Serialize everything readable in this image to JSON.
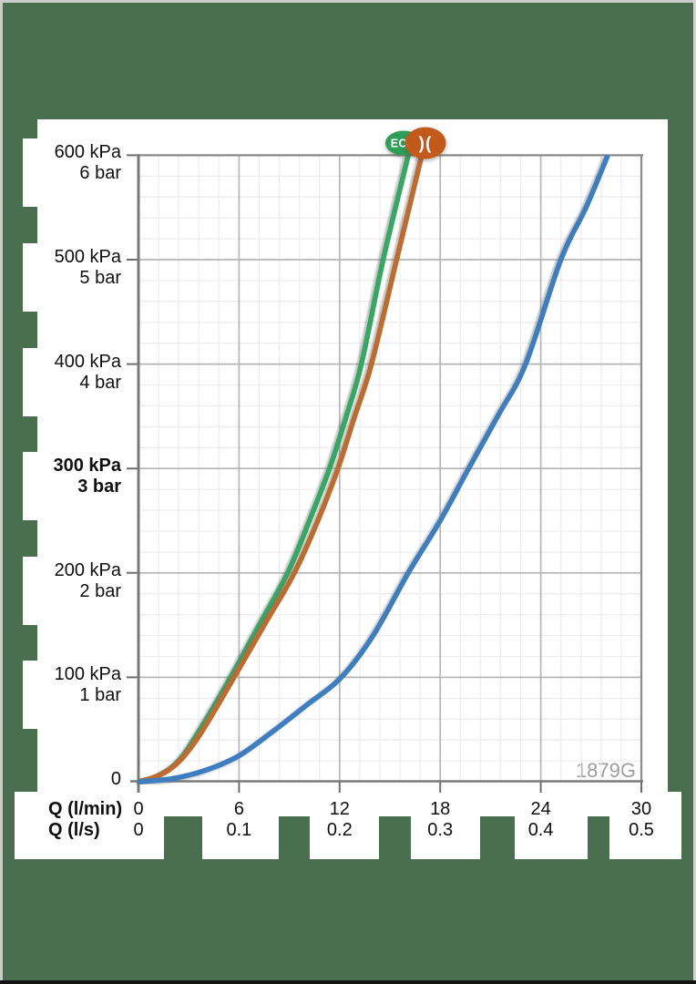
{
  "window": {
    "background_color": "#4a6f4f",
    "panel_color": "#ffffff"
  },
  "chart_data": {
    "type": "line",
    "title": "",
    "watermark": "1879G",
    "x_axis": {
      "label_lmin": "Q (l/min)",
      "label_ls": "Q (l/s)",
      "ticks_lmin": [
        "0",
        "6",
        "12",
        "18",
        "24",
        "30"
      ],
      "ticks_ls": [
        "0",
        "0.1",
        "0.2",
        "0.3",
        "0.4",
        "0.5"
      ],
      "range_lmin": [
        0,
        30
      ],
      "major_step_lmin": 6,
      "minor_step_lmin": 1.2
    },
    "y_axis": {
      "ticks": [
        {
          "kpa": "600 kPa",
          "bar": "6 bar",
          "value": 600,
          "bold": false
        },
        {
          "kpa": "500 kPa",
          "bar": "5 bar",
          "value": 500,
          "bold": false
        },
        {
          "kpa": "400 kPa",
          "bar": "4 bar",
          "value": 400,
          "bold": false
        },
        {
          "kpa": "300 kPa",
          "bar": "3 bar",
          "value": 300,
          "bold": true
        },
        {
          "kpa": "200 kPa",
          "bar": "2 bar",
          "value": 200,
          "bold": false
        },
        {
          "kpa": "100 kPa",
          "bar": "1 bar",
          "value": 100,
          "bold": false
        }
      ],
      "zero_label": "0",
      "range_kpa": [
        0,
        600
      ],
      "major_step_kpa": 100,
      "minor_step_kpa": 20
    },
    "grid": {
      "minor_color": "#ededef",
      "major_color": "#b5b5b7",
      "border_color": "#8a8a8a",
      "axis_color": "#787878",
      "tick_color": "#6e6e6e"
    },
    "legend_badges": [
      {
        "name": "eco",
        "label": "ECO",
        "bg": "#2f9e57",
        "text_color": "#ffffff"
      },
      {
        "name": "flow-restrictor",
        "label": ")(",
        "bg": "#c35a1c",
        "text_color": "#ffffff"
      }
    ],
    "series": [
      {
        "name": "eco-flow",
        "color": "#35a864",
        "points_lmin_kpa": [
          [
            0,
            0
          ],
          [
            1.2,
            6
          ],
          [
            2.4,
            20
          ],
          [
            3.6,
            48
          ],
          [
            5.5,
            100
          ],
          [
            7.2,
            150
          ],
          [
            8.9,
            200
          ],
          [
            10.2,
            250
          ],
          [
            11.4,
            300
          ],
          [
            12.4,
            350
          ],
          [
            13.3,
            400
          ],
          [
            14.6,
            500
          ],
          [
            16.1,
            600
          ]
        ]
      },
      {
        "name": "flow-restricted",
        "color": "#c06a2e",
        "points_lmin_kpa": [
          [
            0,
            0
          ],
          [
            1.2,
            6
          ],
          [
            2.4,
            19
          ],
          [
            3.7,
            46
          ],
          [
            5.7,
            100
          ],
          [
            7.5,
            150
          ],
          [
            9.3,
            200
          ],
          [
            10.7,
            250
          ],
          [
            11.9,
            300
          ],
          [
            12.9,
            350
          ],
          [
            13.9,
            400
          ],
          [
            15.4,
            500
          ],
          [
            16.9,
            600
          ]
        ]
      },
      {
        "name": "standard",
        "color": "#3c7ec1",
        "points_lmin_kpa": [
          [
            0,
            0
          ],
          [
            2,
            3
          ],
          [
            4,
            11
          ],
          [
            6,
            25
          ],
          [
            8,
            48
          ],
          [
            10,
            73
          ],
          [
            12.1,
            100
          ],
          [
            14,
            140
          ],
          [
            16.1,
            200
          ],
          [
            18,
            250
          ],
          [
            19.7,
            300
          ],
          [
            21.5,
            352
          ],
          [
            23.1,
            400
          ],
          [
            25.2,
            500
          ],
          [
            26.7,
            550
          ],
          [
            28,
            600
          ]
        ]
      }
    ]
  }
}
